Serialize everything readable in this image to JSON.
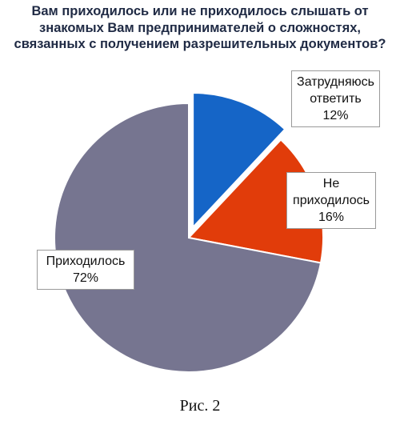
{
  "title": "Вам приходилось или не приходилось слышать от знакомых Вам предпринимателей о сложностях, связанных с получением разрешительных документов?",
  "caption": "Рис. 2",
  "chart_data": {
    "type": "pie",
    "title": "Вам приходилось или не приходилось слышать от знакомых Вам предпринимателей о сложностях, связанных с получением разрешительных документов?",
    "slices": [
      {
        "name": "Затрудняюсь ответить",
        "value": 12,
        "label_lines": [
          "Затрудняюсь",
          "ответить",
          "12%"
        ],
        "color": "#1565c7",
        "exploded": true
      },
      {
        "name": "Не приходилось",
        "value": 16,
        "label_lines": [
          "Не",
          "приходилось",
          "16%"
        ],
        "color": "#e13c0a",
        "exploded": false
      },
      {
        "name": "Приходилось",
        "value": 72,
        "label_lines": [
          "Приходилось",
          "72%"
        ],
        "color": "#767590",
        "exploded": false
      }
    ],
    "legend": "none"
  }
}
